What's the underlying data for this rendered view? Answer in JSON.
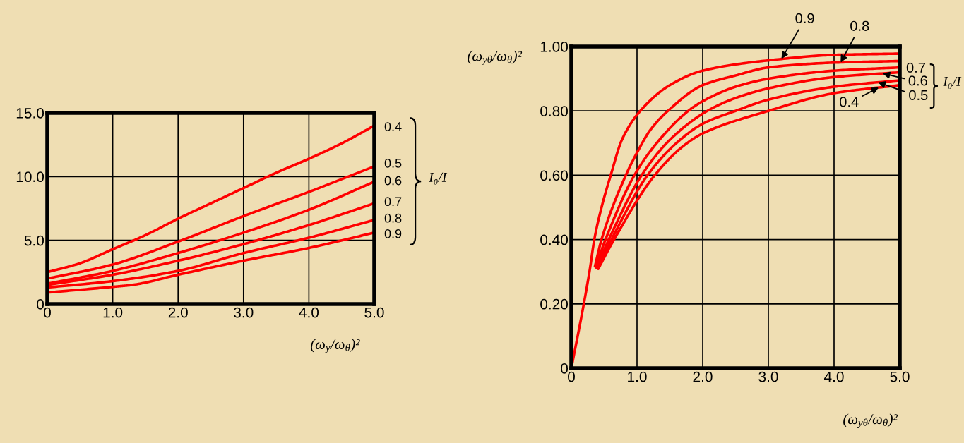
{
  "chart_data": [
    {
      "type": "line",
      "xlabel": "(ω$_{y}$/ω$_{θ}$)²",
      "legend_title": "I₀/I",
      "xlim": [
        0,
        5
      ],
      "ylim": [
        0,
        15
      ],
      "xticks": [
        0,
        {
          "value": 1,
          "label": "1.0"
        },
        {
          "value": 2,
          "label": "2.0"
        },
        {
          "value": 3,
          "label": "3.0"
        },
        {
          "value": 4,
          "label": "4.0"
        },
        {
          "value": 5,
          "label": "5.0"
        }
      ],
      "yticks": [
        0,
        {
          "value": 5,
          "label": "5.0"
        },
        {
          "value": 10,
          "label": "10.0"
        },
        {
          "value": 15,
          "label": "15.0"
        }
      ],
      "grid": true,
      "series": [
        {
          "name": "0.4",
          "color": "#ff0000",
          "x": [
            0,
            0.5,
            1,
            1.5,
            2,
            2.5,
            3,
            3.5,
            4,
            4.5,
            5
          ],
          "values": [
            2.5,
            3.2,
            4.3,
            5.4,
            6.7,
            7.9,
            9.1,
            10.3,
            11.4,
            12.6,
            14.0
          ]
        },
        {
          "name": "0.5",
          "color": "#ff0000",
          "x": [
            0,
            1,
            2,
            3,
            4,
            5
          ],
          "values": [
            2.0,
            3.1,
            4.9,
            6.9,
            8.8,
            10.8
          ]
        },
        {
          "name": "0.6",
          "color": "#ff0000",
          "x": [
            0,
            1,
            2,
            3,
            4,
            5
          ],
          "values": [
            1.6,
            2.6,
            4.0,
            5.6,
            7.4,
            9.6
          ]
        },
        {
          "name": "0.7",
          "color": "#ff0000",
          "x": [
            0,
            1,
            2,
            3,
            4,
            5
          ],
          "values": [
            1.5,
            2.3,
            3.4,
            4.7,
            6.2,
            7.9
          ]
        },
        {
          "name": "0.8",
          "color": "#ff0000",
          "x": [
            0,
            1,
            2,
            3,
            4,
            5
          ],
          "values": [
            1.3,
            1.8,
            2.6,
            4.0,
            5.2,
            6.6
          ]
        },
        {
          "name": "0.9",
          "color": "#ff0000",
          "x": [
            0,
            1,
            1.3,
            2,
            3,
            4,
            5
          ],
          "values": [
            0.9,
            1.35,
            1.5,
            2.3,
            3.4,
            4.4,
            5.6
          ]
        }
      ]
    },
    {
      "type": "line",
      "xlabel": "(ω$_{yθ}$/ω$_{θ}$)²",
      "ylabel": "(ω$_{yθ}$/ω$_{θ}$)²",
      "legend_title": "I₀/I",
      "xlim": [
        0,
        5
      ],
      "ylim": [
        0,
        1
      ],
      "xticks": [
        0,
        {
          "value": 1,
          "label": "1.0"
        },
        {
          "value": 2,
          "label": "2.0"
        },
        {
          "value": 3,
          "label": "3.0"
        },
        {
          "value": 4,
          "label": "4.0"
        },
        {
          "value": 5,
          "label": "5.0"
        }
      ],
      "yticks": [
        0,
        {
          "value": 0.2,
          "label": "0.20"
        },
        {
          "value": 0.4,
          "label": "0.40"
        },
        {
          "value": 0.6,
          "label": "0.60"
        },
        {
          "value": 0.8,
          "label": "0.80"
        },
        {
          "value": 1,
          "label": "1.00"
        }
      ],
      "grid": true,
      "series": [
        {
          "name": "0.9",
          "color": "#ff0000",
          "x": [
            0,
            0.19,
            0.28,
            0.35,
            0.46,
            0.6,
            0.77,
            1.05,
            1.5,
            2.0,
            3.0,
            4.0,
            5.0
          ],
          "values": [
            0,
            0.2,
            0.305,
            0.4,
            0.5,
            0.6,
            0.71,
            0.8,
            0.88,
            0.925,
            0.957,
            0.974,
            0.978
          ]
        },
        {
          "name": "0.8",
          "color": "#ff0000",
          "x": [
            0.36,
            0.46,
            0.83,
            1.0,
            1.2,
            1.47,
            2.0,
            2.5,
            3.0,
            4.0,
            5.0
          ],
          "values": [
            0.317,
            0.4,
            0.6,
            0.67,
            0.74,
            0.8,
            0.88,
            0.91,
            0.935,
            0.95,
            0.955
          ]
        },
        {
          "name": "0.7",
          "color": "#ff0000",
          "x": [
            0.37,
            0.52,
            0.96,
            1.3,
            1.78,
            2.0,
            2.5,
            3.0,
            4.0,
            5.0
          ],
          "values": [
            0.315,
            0.4,
            0.6,
            0.7,
            0.8,
            0.83,
            0.875,
            0.9,
            0.925,
            0.935
          ]
        },
        {
          "name": "0.6",
          "color": "#ff0000",
          "x": [
            0.38,
            0.57,
            1.07,
            1.5,
            2.07,
            2.5,
            3.0,
            4.0,
            5.0
          ],
          "values": [
            0.313,
            0.4,
            0.6,
            0.71,
            0.8,
            0.84,
            0.87,
            0.905,
            0.92
          ]
        },
        {
          "name": "0.5",
          "color": "#ff0000",
          "x": [
            0.39,
            0.61,
            1.16,
            1.6,
            2.0,
            2.5,
            3.0,
            4.0,
            5.0
          ],
          "values": [
            0.311,
            0.4,
            0.6,
            0.7,
            0.76,
            0.8,
            0.835,
            0.875,
            0.895
          ]
        },
        {
          "name": "0.4",
          "color": "#ff0000",
          "x": [
            0.41,
            0.65,
            1.27,
            1.7,
            2.0,
            3.0,
            4.0,
            5.0
          ],
          "values": [
            0.309,
            0.4,
            0.6,
            0.69,
            0.73,
            0.8,
            0.855,
            0.88
          ]
        }
      ]
    }
  ]
}
